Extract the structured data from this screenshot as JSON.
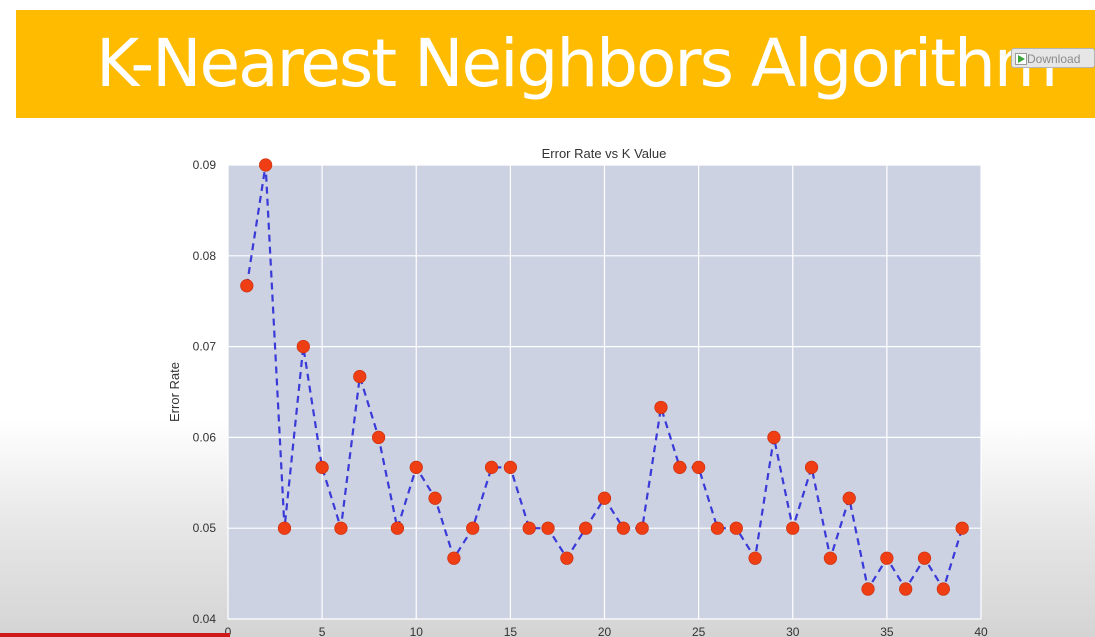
{
  "slide": {
    "title": "K-Nearest Neighbors Algorithm",
    "download_badge": "Download"
  },
  "colors": {
    "title_bar": "#ffbb00",
    "title_text": "#ffffff",
    "plot_background": "#cdd2e2",
    "grid": "#ffffff",
    "line": "#3a3ad8",
    "marker": "#ef3e14"
  },
  "chart_data": {
    "type": "line",
    "title": "Error Rate vs K Value",
    "xlabel": "",
    "ylabel": "Error Rate",
    "xlim": [
      0,
      40
    ],
    "ylim": [
      0.04,
      0.09
    ],
    "xticks": [
      0,
      5,
      10,
      15,
      20,
      25,
      30,
      35,
      40
    ],
    "yticks": [
      0.04,
      0.05,
      0.06,
      0.07,
      0.08,
      0.09
    ],
    "xtick_labels": [
      "0",
      "5",
      "10",
      "15",
      "20",
      "25",
      "30",
      "35",
      "40"
    ],
    "ytick_labels": [
      "0.04",
      "0.05",
      "0.06",
      "0.07",
      "0.08",
      "0.09"
    ],
    "grid": true,
    "line_style": "dashed",
    "marker": "circle",
    "series": [
      {
        "x": [
          1,
          2,
          3,
          4,
          5,
          6,
          7,
          8,
          9,
          10,
          11,
          12,
          13,
          14,
          15,
          16,
          17,
          18,
          19,
          20,
          21,
          22,
          23,
          24,
          25,
          26,
          27,
          28,
          29,
          30,
          31,
          32,
          33,
          34,
          35,
          36,
          37,
          38,
          39
        ],
        "values": [
          0.0767,
          0.09,
          0.05,
          0.07,
          0.0567,
          0.05,
          0.0667,
          0.06,
          0.05,
          0.0567,
          0.0533,
          0.0467,
          0.05,
          0.0567,
          0.0567,
          0.05,
          0.05,
          0.0467,
          0.05,
          0.0533,
          0.05,
          0.05,
          0.0633,
          0.0567,
          0.0567,
          0.05,
          0.05,
          0.0467,
          0.06,
          0.05,
          0.0567,
          0.0467,
          0.0533,
          0.0433,
          0.0467,
          0.0433,
          0.0467,
          0.0433,
          0.05
        ]
      }
    ]
  }
}
